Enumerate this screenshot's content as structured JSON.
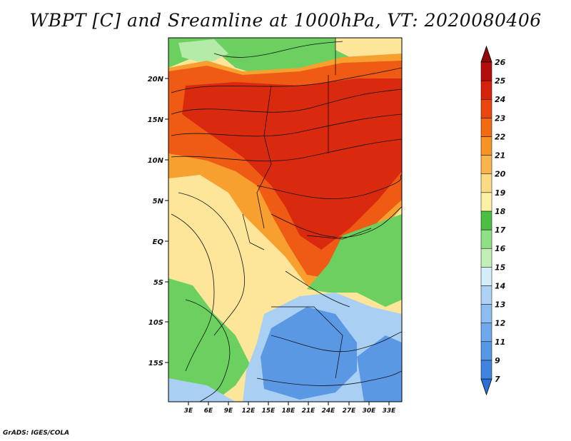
{
  "title": "WBPT [C] and Sreamline at 1000hPa, VT: 2020080406",
  "credit": "GrADS: IGES/COLA",
  "map": {
    "lat_labels": [
      "20N",
      "15N",
      "10N",
      "5N",
      "EQ",
      "5S",
      "10S",
      "15S"
    ],
    "lon_labels": [
      "3E",
      "6E",
      "9E",
      "12E",
      "15E",
      "18E",
      "21E",
      "24E",
      "27E",
      "30E",
      "33E"
    ]
  },
  "colorbar": {
    "labels": [
      "7",
      "9",
      "11",
      "12",
      "13",
      "14",
      "15",
      "16",
      "17",
      "18",
      "19",
      "20",
      "21",
      "22",
      "23",
      "24",
      "25",
      "26"
    ],
    "colors": [
      "#2c6fd6",
      "#3f84e0",
      "#5697e6",
      "#6fa9ec",
      "#8cbdf0",
      "#aed2f5",
      "#d5ecfa",
      "#c2efb5",
      "#8fdf85",
      "#4cbf43",
      "#fdf0a7",
      "#fbd985",
      "#f9b54b",
      "#f69324",
      "#f26a12",
      "#e9470d",
      "#d5220d",
      "#b30e0c",
      "#8c0a0a"
    ]
  },
  "colors": {
    "warm_max": "#d92a10",
    "warm": "#ef5a14",
    "orange": "#f7a030",
    "yellow": "#fde59a",
    "green": "#6bd060",
    "light_green": "#b5eba8",
    "blue": "#5a98e4",
    "light_blue": "#a9cff3"
  }
}
